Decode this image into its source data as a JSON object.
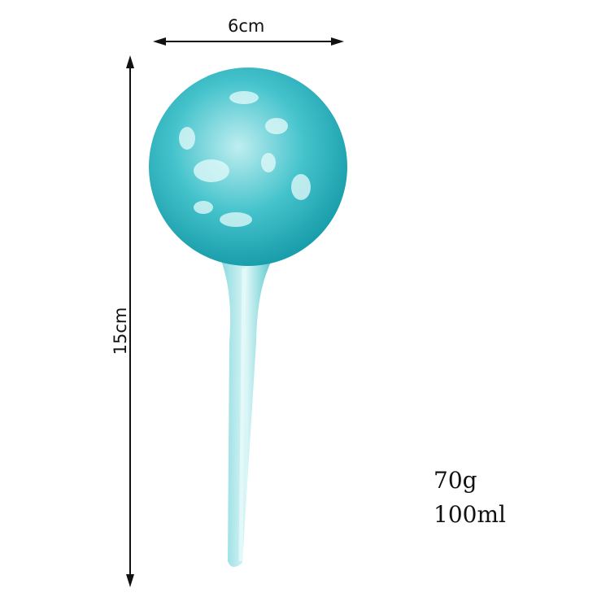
{
  "dimensions": {
    "width": "6cm",
    "height": "15cm"
  },
  "specs": {
    "weight": "70g",
    "volume": "100ml"
  },
  "colors": {
    "glass": "#2fb8c4",
    "glass_light": "#bfeef0",
    "arrow": "#111111"
  }
}
